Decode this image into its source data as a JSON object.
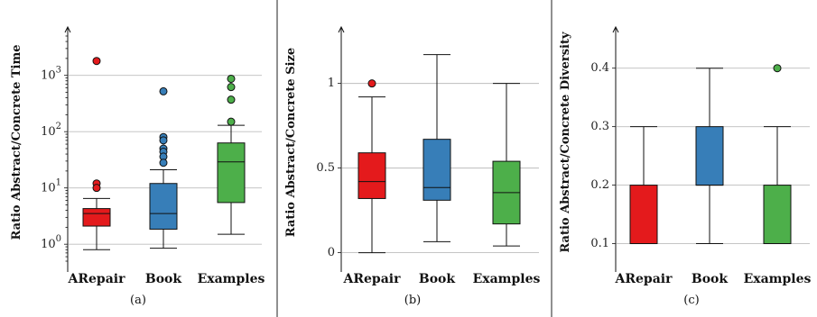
{
  "chart_data": [
    {
      "type": "box",
      "caption": "(a)",
      "ylabel": "Ratio Abstract/Concrete Time",
      "yscale": "log",
      "ylim": [
        0.5,
        5000
      ],
      "yticks": [
        1,
        10,
        100,
        1000
      ],
      "ytick_labels": [
        "10^0",
        "10^1",
        "10^2",
        "10^3"
      ],
      "grid": true,
      "categories": [
        "ARepair",
        "Book",
        "Examples"
      ],
      "boxes": [
        {
          "name": "ARepair",
          "color": "#e41a1c",
          "whisker_low": 0.8,
          "q1": 2.1,
          "median": 3.5,
          "q3": 4.3,
          "whisker_high": 6.5,
          "outliers": [
            1800,
            12,
            10
          ]
        },
        {
          "name": "Book",
          "color": "#377eb8",
          "whisker_low": 0.85,
          "q1": 1.85,
          "median": 3.5,
          "q3": 12,
          "whisker_high": 21,
          "outliers": [
            520,
            80,
            70,
            50,
            44,
            36,
            28
          ]
        },
        {
          "name": "Examples",
          "color": "#4daf4a",
          "whisker_low": 1.5,
          "q1": 5.5,
          "median": 29,
          "q3": 63,
          "whisker_high": 130,
          "outliers": [
            870,
            620,
            370,
            150
          ]
        }
      ]
    },
    {
      "type": "box",
      "caption": "(b)",
      "ylabel": "Ratio Abstract/Concrete Size",
      "yscale": "linear",
      "ylim": [
        -0.05,
        1.28
      ],
      "yticks": [
        0,
        0.5,
        1
      ],
      "ytick_labels": [
        "0",
        "0.5",
        "1"
      ],
      "grid": true,
      "categories": [
        "ARepair",
        "Book",
        "Examples"
      ],
      "boxes": [
        {
          "name": "ARepair",
          "color": "#e41a1c",
          "whisker_low": 0,
          "q1": 0.32,
          "median": 0.42,
          "q3": 0.59,
          "whisker_high": 0.92,
          "outliers": [
            1.0
          ]
        },
        {
          "name": "Book",
          "color": "#377eb8",
          "whisker_low": 0.065,
          "q1": 0.31,
          "median": 0.385,
          "q3": 0.67,
          "whisker_high": 1.17,
          "outliers": []
        },
        {
          "name": "Examples",
          "color": "#4daf4a",
          "whisker_low": 0.04,
          "q1": 0.17,
          "median": 0.355,
          "q3": 0.54,
          "whisker_high": 1.0,
          "outliers": []
        }
      ]
    },
    {
      "type": "box",
      "caption": "(c)",
      "ylabel": "Ratio Abstract/Concrete Diversity",
      "yscale": "linear",
      "ylim": [
        0.07,
        0.455
      ],
      "yticks": [
        0.1,
        0.2,
        0.3,
        0.4
      ],
      "ytick_labels": [
        "0.1",
        "0.2",
        "0.3",
        "0.4"
      ],
      "grid": true,
      "categories": [
        "ARepair",
        "Book",
        "Examples"
      ],
      "boxes": [
        {
          "name": "ARepair",
          "color": "#e41a1c",
          "whisker_low": 0.1,
          "q1": 0.1,
          "median": 0.1,
          "q3": 0.2,
          "whisker_high": 0.3,
          "outliers": []
        },
        {
          "name": "Book",
          "color": "#377eb8",
          "whisker_low": 0.1,
          "q1": 0.2,
          "median": 0.2,
          "q3": 0.3,
          "whisker_high": 0.4,
          "outliers": []
        },
        {
          "name": "Examples",
          "color": "#4daf4a",
          "whisker_low": 0.1,
          "q1": 0.1,
          "median": 0.1,
          "q3": 0.2,
          "whisker_high": 0.3,
          "outliers": [
            0.4
          ]
        }
      ]
    }
  ]
}
